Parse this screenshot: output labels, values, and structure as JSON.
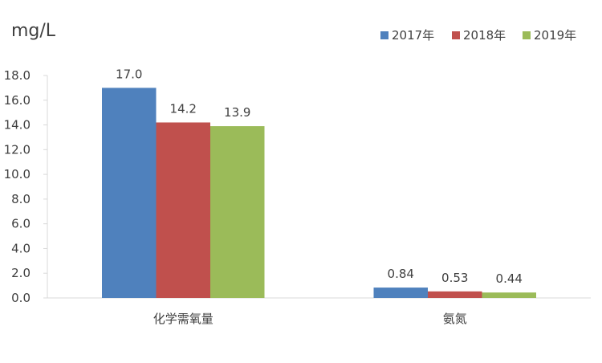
{
  "chart_data": {
    "type": "bar",
    "title": "",
    "ylabel": "mg/L",
    "xlabel": "",
    "categories": [
      "化学需氧量",
      "氨氮"
    ],
    "series": [
      {
        "name": "2017年",
        "values": [
          17.0,
          0.84
        ],
        "labels": [
          "17.0",
          "0.84"
        ],
        "color": "#4F81BD"
      },
      {
        "name": "2018年",
        "values": [
          14.2,
          0.53
        ],
        "labels": [
          "14.2",
          "0.53"
        ],
        "color": "#C0504D"
      },
      {
        "name": "2019年",
        "values": [
          13.9,
          0.44
        ],
        "labels": [
          "13.9",
          "0.44"
        ],
        "color": "#9BBB59"
      }
    ],
    "ylim": [
      0,
      18
    ],
    "yticks": [
      "0.0",
      "2.0",
      "4.0",
      "6.0",
      "8.0",
      "10.0",
      "12.0",
      "14.0",
      "16.0",
      "18.0"
    ],
    "grid": false,
    "legend": "top-right"
  }
}
